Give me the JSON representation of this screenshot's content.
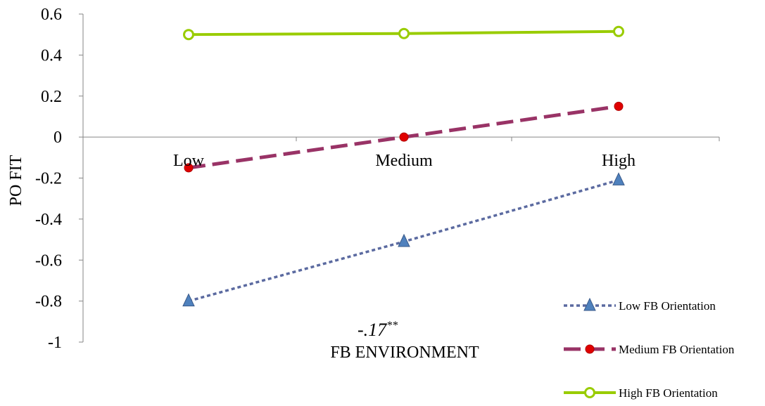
{
  "chart_data": {
    "type": "line",
    "title": "",
    "xlabel": "FB ENVIRONMENT",
    "ylabel": "PO FIT",
    "categories": [
      "Low",
      "Medium",
      "High"
    ],
    "ylim": [
      -1,
      0.6
    ],
    "yticks": [
      0.6,
      0.4,
      0.2,
      0,
      -0.2,
      -0.4,
      -0.6,
      -0.8,
      -1
    ],
    "ytick_labels": [
      "0.6",
      "0.4",
      "0.2",
      "0",
      "-0.2",
      "-0.4",
      "-0.6",
      "-0.8",
      "-1"
    ],
    "grid": false,
    "legend_position": "bottom-right",
    "annotation": {
      "text": "-.17",
      "sup": "**"
    },
    "series": [
      {
        "name": "Low FB Orientation",
        "values": [
          -0.8,
          -0.51,
          -0.21
        ],
        "color": "#5b6aa0",
        "marker_color": "#4f81bd",
        "marker": "triangle",
        "dash": "dotted"
      },
      {
        "name": "Medium FB Orientation",
        "values": [
          -0.15,
          0.0,
          0.15
        ],
        "color": "#993366",
        "marker_color": "#e00000",
        "marker": "circle",
        "dash": "long-dash"
      },
      {
        "name": "High FB Orientation",
        "values": [
          0.5,
          0.505,
          0.515
        ],
        "color": "#99cc00",
        "marker_color": "#99cc00",
        "marker": "open-circle",
        "dash": "solid"
      }
    ]
  }
}
